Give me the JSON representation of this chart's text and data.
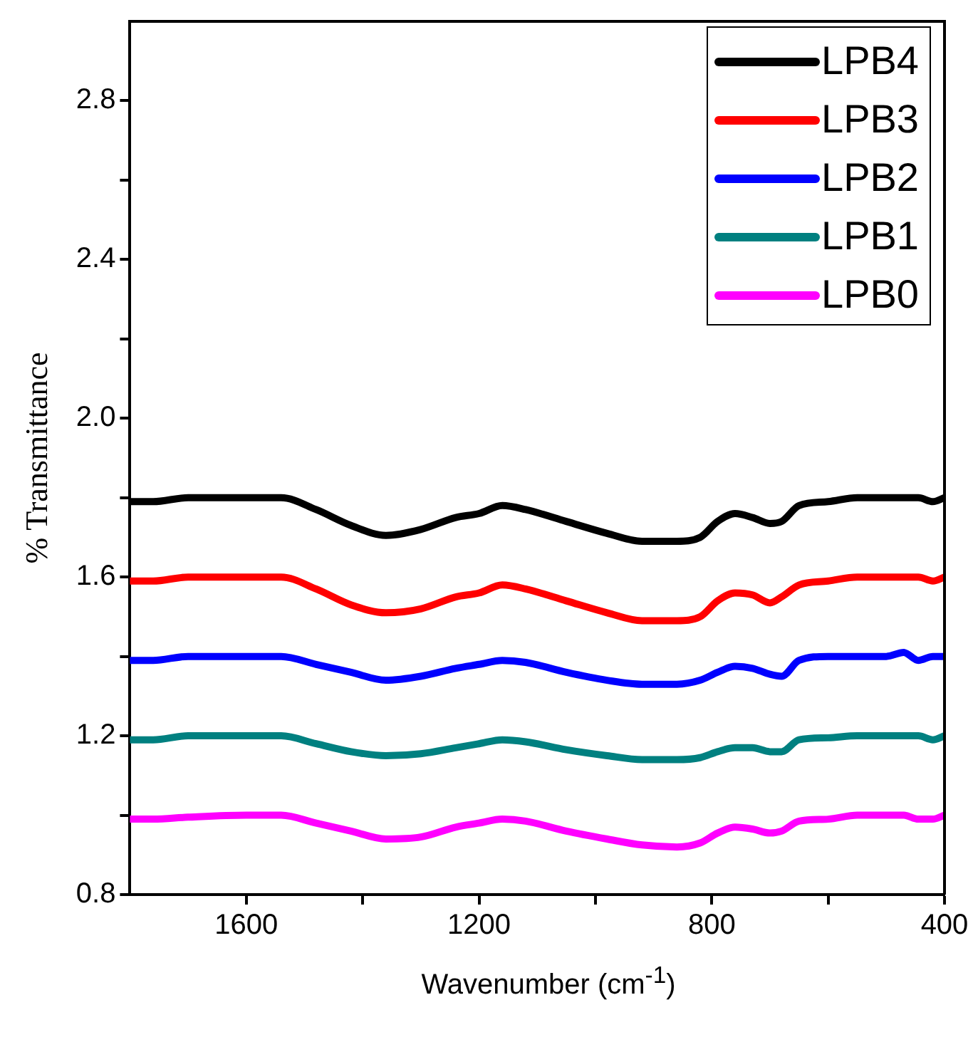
{
  "chart_data": {
    "type": "line",
    "xlabel": "Wavenumber (cm$^{-1}$)",
    "ylabel": "% Transmittance",
    "xlim": [
      1800,
      400
    ],
    "xticks": [
      1600,
      {
        "value": 1400,
        "label": null
      },
      1200,
      {
        "value": 1000,
        "label": null
      },
      800,
      {
        "value": 600,
        "label": null
      },
      400
    ],
    "ylim": [
      0.8,
      3.0
    ],
    "yticks": [
      0.8,
      {
        "value": 1.0,
        "label": null
      },
      1.2,
      {
        "value": 1.4,
        "label": null
      },
      1.6,
      {
        "value": 1.8,
        "label": null
      },
      {
        "value": 2.0,
        "label": "2.0"
      },
      {
        "value": 2.2,
        "label": null
      },
      2.4,
      {
        "value": 2.6,
        "label": null
      },
      2.8
    ],
    "x": [
      1800,
      1760,
      1700,
      1600,
      1540,
      1480,
      1420,
      1360,
      1300,
      1240,
      1200,
      1160,
      1120,
      1050,
      980,
      920,
      860,
      820,
      790,
      760,
      730,
      700,
      680,
      650,
      600,
      550,
      500,
      470,
      445,
      420,
      400
    ],
    "series": [
      {
        "name": "LPB4",
        "color": "#000000",
        "values": [
          1.79,
          1.79,
          1.8,
          1.8,
          1.8,
          1.77,
          1.73,
          1.705,
          1.72,
          1.75,
          1.76,
          1.78,
          1.77,
          1.74,
          1.71,
          1.69,
          1.69,
          1.7,
          1.74,
          1.76,
          1.75,
          1.735,
          1.74,
          1.78,
          1.79,
          1.8,
          1.8,
          1.8,
          1.8,
          1.79,
          1.8
        ]
      },
      {
        "name": "LPB3",
        "color": "#ff0000",
        "values": [
          1.59,
          1.59,
          1.6,
          1.6,
          1.6,
          1.57,
          1.53,
          1.51,
          1.52,
          1.55,
          1.56,
          1.58,
          1.57,
          1.54,
          1.51,
          1.49,
          1.49,
          1.5,
          1.54,
          1.56,
          1.555,
          1.535,
          1.55,
          1.58,
          1.59,
          1.6,
          1.6,
          1.6,
          1.6,
          1.59,
          1.6
        ]
      },
      {
        "name": "LPB2",
        "color": "#0000ff",
        "values": [
          1.39,
          1.39,
          1.4,
          1.4,
          1.4,
          1.38,
          1.36,
          1.34,
          1.35,
          1.37,
          1.38,
          1.39,
          1.385,
          1.36,
          1.34,
          1.33,
          1.33,
          1.34,
          1.36,
          1.375,
          1.37,
          1.355,
          1.35,
          1.39,
          1.4,
          1.4,
          1.4,
          1.41,
          1.39,
          1.4,
          1.4
        ]
      },
      {
        "name": "LPB1",
        "color": "#008080",
        "values": [
          1.19,
          1.19,
          1.2,
          1.2,
          1.2,
          1.18,
          1.16,
          1.15,
          1.155,
          1.17,
          1.18,
          1.19,
          1.185,
          1.165,
          1.15,
          1.14,
          1.14,
          1.145,
          1.16,
          1.17,
          1.17,
          1.16,
          1.16,
          1.19,
          1.195,
          1.2,
          1.2,
          1.2,
          1.2,
          1.19,
          1.2
        ]
      },
      {
        "name": "LPB0",
        "color": "#ff00ff",
        "values": [
          0.99,
          0.99,
          0.995,
          1.0,
          1.0,
          0.98,
          0.96,
          0.94,
          0.945,
          0.97,
          0.98,
          0.99,
          0.985,
          0.96,
          0.94,
          0.925,
          0.92,
          0.93,
          0.955,
          0.97,
          0.965,
          0.955,
          0.96,
          0.985,
          0.99,
          1.0,
          1.0,
          1.0,
          0.99,
          0.99,
          1.0
        ]
      }
    ],
    "legend": "top right",
    "grid": false,
    "marker": "none",
    "line_style": "solid"
  }
}
